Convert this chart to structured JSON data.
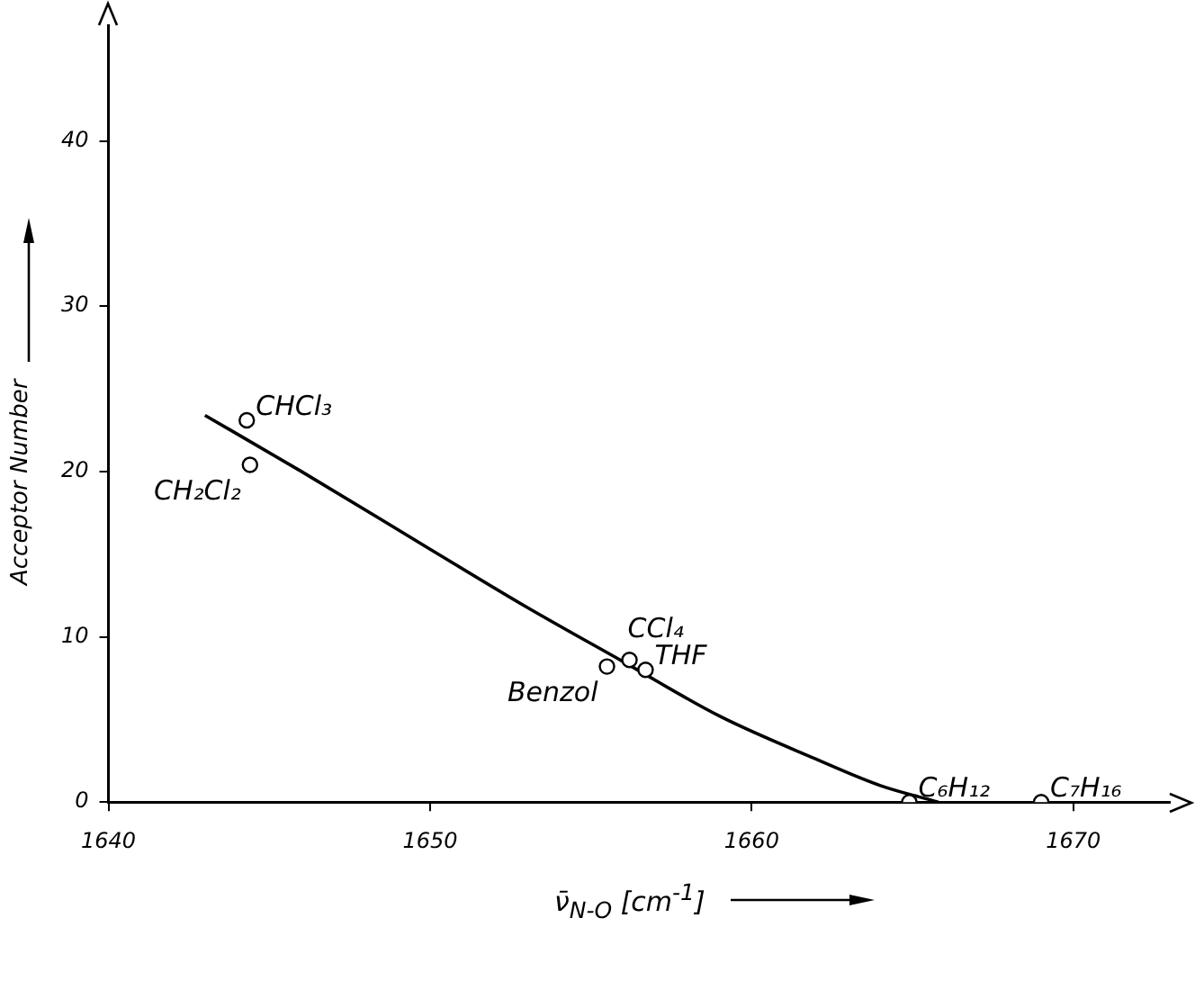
{
  "chart_data": {
    "type": "scatter",
    "xlabel": "ν̄$_{N-O}$ [cm$^{-1}$]",
    "ylabel": "Acceptor Number",
    "xlim": [
      1640,
      1673
    ],
    "xticks": [
      1640,
      1650,
      1660,
      1670
    ],
    "ylim": [
      0,
      47
    ],
    "yticks": [
      0,
      10,
      20,
      30,
      40
    ],
    "grid": false,
    "legend": false,
    "series": [
      {
        "type": "scatter",
        "color": "#000000",
        "marker": "circle",
        "x": [
          1644.3,
          1644.4,
          1655.5,
          1656.2,
          1656.7,
          1664.9,
          1669.0
        ],
        "values": [
          23.1,
          20.4,
          8.2,
          8.6,
          8.0,
          0,
          0
        ]
      },
      {
        "type": "line",
        "color": "#000000",
        "marker": "none",
        "line_style": "solid",
        "x": [
          1643,
          1646,
          1650,
          1653,
          1656,
          1659,
          1662,
          1664,
          1665.8
        ],
        "values": [
          23.4,
          20.0,
          15.3,
          11.8,
          8.5,
          5.2,
          2.6,
          1.0,
          0
        ]
      }
    ],
    "annotations": [
      {
        "text": "CHCl₃",
        "x": 1644.3,
        "y": 23.1
      },
      {
        "text": "CH₂Cl₂",
        "x": 1644.4,
        "y": 20.4
      },
      {
        "text": "Benzol",
        "x": 1655.5,
        "y": 8.2
      },
      {
        "text": "CCl₄",
        "x": 1656.2,
        "y": 8.6
      },
      {
        "text": "THF",
        "x": 1656.7,
        "y": 8.0
      },
      {
        "text": "C₆H₁₂",
        "x": 1664.9,
        "y": 0
      },
      {
        "text": "C₇H₁₆",
        "x": 1669.0,
        "y": 0
      }
    ]
  }
}
